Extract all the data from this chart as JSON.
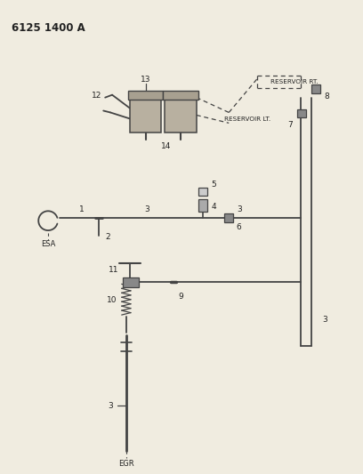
{
  "title": "6125 1400 A",
  "bg_color": "#f0ece0",
  "line_color": "#444444",
  "text_color": "#222222",
  "labels": {
    "title": "6125 1400 A",
    "ESA": "ESA",
    "EGR": "EGR",
    "RESERVOIR_LT": "RESERVOIR LT.",
    "RESERVOIR_RT": "RESERVOIR RT."
  },
  "fig_w": 4.08,
  "fig_h": 5.33,
  "dpi": 100
}
